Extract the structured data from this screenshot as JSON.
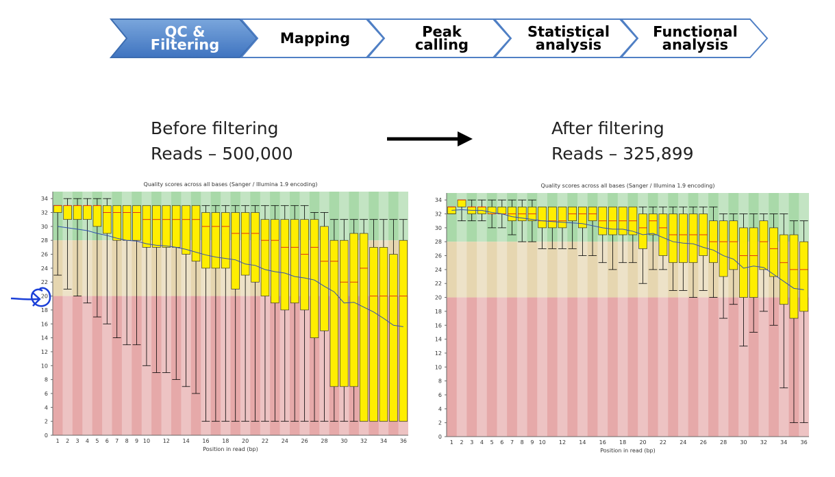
{
  "workflow": [
    {
      "lines": [
        "QC &",
        "Filtering"
      ]
    },
    {
      "lines": [
        "Mapping"
      ]
    },
    {
      "lines": [
        "Peak",
        "calling"
      ]
    },
    {
      "lines": [
        "Statistical",
        "analysis"
      ]
    },
    {
      "lines": [
        "Functional",
        "analysis"
      ]
    }
  ],
  "panels": [
    {
      "heading": "Before filtering",
      "reads": "Reads – 500,000"
    },
    {
      "heading": "After filtering",
      "reads": "Reads – 325,899"
    }
  ],
  "chart_data": [
    {
      "type": "box",
      "title": "Quality scores across all bases (Sanger / Illumina 1.9 encoding)",
      "x_label": "Position in read (bp)",
      "categories": [
        1,
        2,
        3,
        4,
        5,
        6,
        7,
        8,
        9,
        10,
        null,
        12,
        null,
        14,
        null,
        16,
        null,
        18,
        null,
        20,
        null,
        22,
        null,
        24,
        null,
        26,
        null,
        28,
        null,
        30,
        null,
        32,
        null,
        34,
        null,
        36
      ],
      "low": [
        23,
        21,
        20,
        19,
        17,
        16,
        14,
        13,
        13,
        10,
        9,
        9,
        8,
        7,
        6,
        2,
        2,
        2,
        2,
        2,
        2,
        2,
        2,
        2,
        2,
        2,
        2,
        2,
        2,
        2,
        2,
        2,
        2,
        2,
        2,
        2
      ],
      "q1": [
        32,
        31,
        31,
        31,
        30,
        29,
        28,
        28,
        28,
        27,
        27,
        27,
        27,
        26,
        25,
        24,
        24,
        24,
        21,
        23,
        22,
        20,
        19,
        18,
        19,
        18,
        14,
        15,
        7,
        7,
        7,
        2,
        2,
        2,
        2,
        2
      ],
      "median": [
        33,
        33,
        33,
        33,
        33,
        32,
        32,
        32,
        32,
        31,
        31,
        31,
        31,
        31,
        31,
        30,
        30,
        30,
        29,
        29,
        29,
        28,
        28,
        27,
        27,
        26,
        27,
        25,
        25,
        22,
        22,
        24,
        20,
        20,
        20,
        20
      ],
      "q3": [
        33,
        33,
        33,
        33,
        33,
        33,
        33,
        33,
        33,
        33,
        33,
        33,
        33,
        33,
        33,
        32,
        32,
        32,
        32,
        32,
        32,
        31,
        31,
        31,
        31,
        31,
        31,
        30,
        28,
        28,
        29,
        29,
        27,
        27,
        26,
        28
      ],
      "high": [
        33,
        34,
        34,
        34,
        34,
        34,
        33,
        33,
        33,
        33,
        33,
        33,
        33,
        33,
        33,
        33,
        33,
        33,
        33,
        33,
        33,
        33,
        33,
        33,
        33,
        33,
        32,
        32,
        31,
        31,
        31,
        31,
        31,
        31,
        31,
        31
      ],
      "mean": [
        30,
        29.8,
        29.6,
        29.4,
        29,
        28.7,
        28.3,
        28,
        27.9,
        27.5,
        27.3,
        27.2,
        27,
        26.7,
        26.3,
        25.9,
        25.6,
        25.4,
        25.2,
        24.6,
        24.4,
        23.8,
        23.5,
        23.3,
        22.8,
        22.6,
        22.3,
        21.4,
        20.6,
        19,
        19.1,
        18.4,
        17.7,
        16.8,
        15.8,
        15.6
      ],
      "box_color": "#ffee00",
      "median_color": "#e03010",
      "mean_color": "#3050b0",
      "zones": [
        {
          "from": 28,
          "to": 35,
          "color": "#a9d9a9"
        },
        {
          "from": 20,
          "to": 28,
          "color": "#e6d6b0"
        },
        {
          "from": 0,
          "to": 20,
          "color": "#e6a9a9"
        }
      ],
      "ylim": [
        0,
        35
      ],
      "yticks": [
        0,
        2,
        4,
        6,
        8,
        10,
        12,
        14,
        16,
        18,
        20,
        22,
        24,
        26,
        28,
        30,
        32,
        34
      ]
    },
    {
      "type": "box",
      "title": "Quality scores across all bases (Sanger / Illumina 1.9 encoding)",
      "x_label": "Position in read (bp)",
      "categories": [
        1,
        2,
        3,
        4,
        5,
        6,
        7,
        8,
        9,
        10,
        null,
        12,
        null,
        14,
        null,
        16,
        null,
        18,
        null,
        20,
        null,
        22,
        null,
        24,
        null,
        26,
        null,
        28,
        null,
        30,
        null,
        32,
        null,
        34,
        null,
        36
      ],
      "low": [
        32,
        31,
        31,
        31,
        30,
        30,
        29,
        28,
        28,
        27,
        27,
        27,
        27,
        26,
        26,
        25,
        24,
        25,
        25,
        22,
        24,
        24,
        21,
        21,
        20,
        21,
        20,
        17,
        19,
        13,
        15,
        18,
        16,
        7,
        2,
        2
      ],
      "q1": [
        32,
        33,
        32,
        32,
        32,
        32,
        31,
        31,
        31,
        30,
        30,
        30,
        31,
        30,
        31,
        29,
        29,
        29,
        29,
        27,
        29,
        26,
        25,
        25,
        25,
        26,
        25,
        23,
        24,
        20,
        20,
        24,
        23,
        19,
        17,
        18
      ],
      "median": [
        33,
        34,
        33,
        33,
        32,
        32,
        32,
        32,
        32,
        31,
        31,
        31,
        32,
        32,
        32,
        31,
        31,
        31,
        31,
        30,
        31,
        30,
        29,
        29,
        29,
        29,
        28,
        28,
        28,
        26,
        26,
        28,
        27,
        25,
        24,
        24
      ],
      "q3": [
        33,
        34,
        33,
        33,
        33,
        33,
        33,
        33,
        33,
        33,
        33,
        33,
        33,
        33,
        33,
        33,
        33,
        33,
        33,
        32,
        32,
        32,
        32,
        32,
        32,
        32,
        31,
        31,
        31,
        30,
        30,
        31,
        30,
        29,
        29,
        28
      ],
      "high": [
        33,
        34,
        34,
        34,
        34,
        34,
        34,
        34,
        34,
        33,
        33,
        33,
        33,
        33,
        33,
        33,
        33,
        33,
        33,
        33,
        33,
        33,
        33,
        33,
        33,
        33,
        33,
        32,
        32,
        32,
        32,
        32,
        32,
        32,
        31,
        31
      ],
      "mean": [
        32.5,
        32.6,
        32.5,
        32.5,
        32.2,
        32,
        31.6,
        31.4,
        31.2,
        31,
        30.9,
        30.8,
        30.7,
        30.6,
        30.3,
        30,
        29.8,
        29.8,
        29.5,
        29,
        29.2,
        28.6,
        28,
        27.8,
        27.7,
        27.2,
        26.8,
        26,
        25.5,
        24.2,
        24.5,
        24.3,
        23.3,
        22.3,
        21.3,
        21.1
      ],
      "box_color": "#ffee00",
      "median_color": "#e03010",
      "mean_color": "#3050b0",
      "zones": [
        {
          "from": 28,
          "to": 35,
          "color": "#a9d9a9"
        },
        {
          "from": 20,
          "to": 28,
          "color": "#e6d6b0"
        },
        {
          "from": 0,
          "to": 20,
          "color": "#e6a9a9"
        }
      ],
      "ylim": [
        0,
        35
      ],
      "yticks": [
        0,
        2,
        4,
        6,
        8,
        10,
        12,
        14,
        16,
        18,
        20,
        22,
        24,
        26,
        28,
        30,
        32,
        34
      ]
    }
  ]
}
